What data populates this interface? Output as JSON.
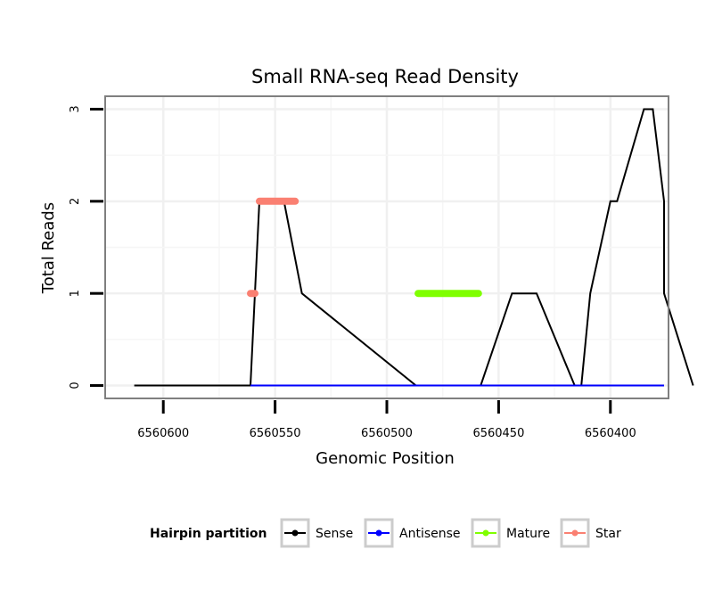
{
  "chart_data": {
    "type": "line",
    "title": "Small RNA-seq Read Density",
    "xlabel": "Genomic Position",
    "ylabel": "Total Reads",
    "xlim": [
      6560626,
      6560374
    ],
    "ylim": [
      -0.14,
      3.14
    ],
    "x_reversed": true,
    "xticks": [
      6560600,
      6560550,
      6560500,
      6560450,
      6560400
    ],
    "xtick_labels": [
      "6560600",
      "6560550",
      "6560500",
      "6560450",
      "6560400"
    ],
    "yticks": [
      0,
      1,
      2,
      3
    ],
    "ytick_labels": [
      "0",
      "1",
      "2",
      "3"
    ],
    "grid": true,
    "legend": {
      "title": "Hairpin partition",
      "position": "bottom",
      "entries": [
        "Sense",
        "Antisense",
        "Mature",
        "Star"
      ]
    },
    "series": [
      {
        "name": "Sense",
        "color": "#000000",
        "x": [
          6560613,
          6560561,
          6560557,
          6560546,
          6560538,
          6560538,
          6560487,
          6560458,
          6560444,
          6560437,
          6560433,
          6560416,
          6560413,
          6560409,
          6560409,
          6560400,
          6560397,
          6560385,
          6560381,
          6560376,
          6560376,
          6560376,
          6560363
        ],
        "y": [
          0,
          0,
          2,
          2,
          1,
          1,
          0,
          0,
          1,
          1,
          1,
          0,
          0,
          1,
          1,
          2,
          2,
          3,
          3,
          2,
          2,
          1,
          0
        ]
      },
      {
        "name": "Antisense",
        "color": "#0000ff",
        "x": [
          6560561,
          6560533,
          6560487,
          6560458,
          6560416,
          6560376
        ],
        "y": [
          0,
          0,
          0,
          0,
          0,
          0
        ]
      },
      {
        "name": "Mature",
        "color": "#7fff00",
        "x": [
          6560486,
          6560459
        ],
        "y": [
          1,
          1
        ]
      },
      {
        "name": "Star",
        "color": "#fa8072",
        "x": [
          6560561,
          6560559
        ],
        "y": [
          1,
          1
        ],
        "segments": [
          {
            "x": [
              6560561,
              6560559
            ],
            "y": [
              1,
              1
            ]
          },
          {
            "x": [
              6560557,
              6560541
            ],
            "y": [
              2,
              2
            ]
          }
        ]
      }
    ]
  }
}
